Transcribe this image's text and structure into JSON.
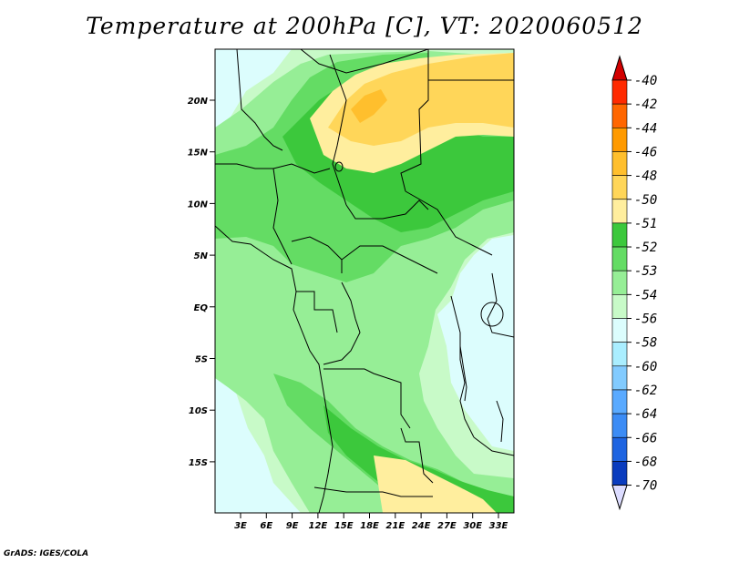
{
  "title": "Temperature at 200hPa [C], VT: 2020060512",
  "credit": "GrADS: IGES/COLA",
  "map": {
    "lat_labels": [
      "20N",
      "15N",
      "10N",
      "5N",
      "EQ",
      "5S",
      "10S",
      "15S"
    ],
    "lon_labels": [
      "3E",
      "6E",
      "9E",
      "12E",
      "15E",
      "18E",
      "21E",
      "24E",
      "27E",
      "30E",
      "33E"
    ]
  },
  "legend": {
    "labels": [
      "-40",
      "-42",
      "-44",
      "-46",
      "-48",
      "-50",
      "-51",
      "-52",
      "-53",
      "-54",
      "-56",
      "-58",
      "-60",
      "-62",
      "-64",
      "-66",
      "-68",
      "-70"
    ],
    "colors": [
      "#ff2a00",
      "#ff6600",
      "#ff9a00",
      "#ffbf2d",
      "#ffd659",
      "#ffee9e",
      "#3cc83c",
      "#64dc64",
      "#96ee96",
      "#c8fac8",
      "#dcfdfd",
      "#aaeeff",
      "#82cbff",
      "#5aaaff",
      "#3c8cf5",
      "#1e64e1",
      "#0a3cbe",
      "#000080"
    ],
    "top_cap_color": "#d20000",
    "bottom_cap_color": "#dcdcff"
  },
  "palette": {
    "cyan": "#dcfdfd",
    "lightgreen": "#c8fac8",
    "green": "#96ee96",
    "midgreen": "#64dc64",
    "darkgreen": "#3cc83c",
    "paleyellow": "#ffee9e",
    "yellow": "#ffd659",
    "orange": "#ffbf2d"
  }
}
